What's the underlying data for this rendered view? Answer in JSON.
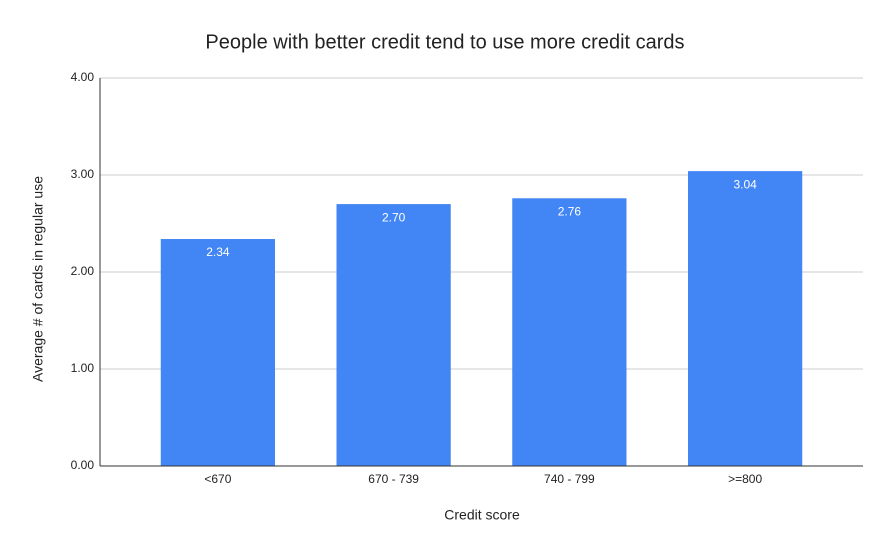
{
  "chart_data": {
    "type": "bar",
    "title": "People with better credit tend to use more credit cards",
    "x_label": "Credit score",
    "y_label": "Average # of cards in regular use",
    "categories": [
      "<670",
      "670 - 739",
      "740 - 799",
      ">=800"
    ],
    "values": [
      2.34,
      2.7,
      2.76,
      3.04
    ],
    "value_labels": [
      "2.34",
      "2.70",
      "2.76",
      "3.04"
    ],
    "color": "#4285f4",
    "ylim": [
      0,
      4
    ],
    "yticks": [
      {
        "value": 0,
        "label": "0.00"
      },
      {
        "value": 1,
        "label": "1.00"
      },
      {
        "value": 2,
        "label": "2.00"
      },
      {
        "value": 3,
        "label": "3.00"
      },
      {
        "value": 4,
        "label": "4.00"
      }
    ],
    "grid": true
  }
}
